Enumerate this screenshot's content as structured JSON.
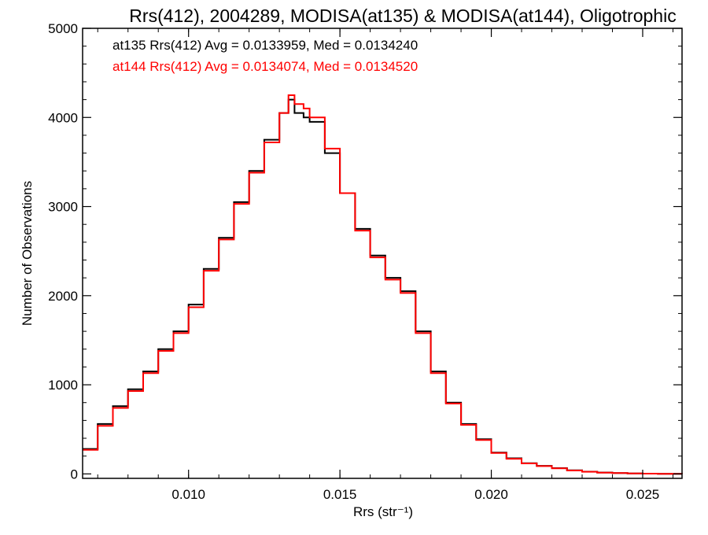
{
  "chart_data": {
    "type": "line",
    "title": "Rrs(412), 2004289, MODISA(at135) & MODISA(at144), Oligotrophic",
    "xlabel": "Rrs (str⁻¹)",
    "ylabel": "Number of Observations",
    "xlim": [
      0.0065,
      0.0263
    ],
    "ylim": [
      -50,
      5000
    ],
    "x_ticks": [
      0.01,
      0.015,
      0.02,
      0.025
    ],
    "x_tick_labels": [
      "0.010",
      "0.015",
      "0.020",
      "0.025"
    ],
    "y_ticks": [
      0,
      1000,
      2000,
      3000,
      4000,
      5000
    ],
    "y_tick_labels": [
      "0",
      "1000",
      "2000",
      "3000",
      "4000",
      "5000"
    ],
    "grid": false,
    "legend_placement": "top-left",
    "annotations": [
      {
        "text": "at135 Rrs(412) Avg = 0.0133959, Med = 0.0134240",
        "color": "#000000"
      },
      {
        "text": "at144 Rrs(412) Avg = 0.0134074, Med = 0.0134520",
        "color": "#ff0000"
      }
    ],
    "series": [
      {
        "color": "#000000",
        "step": true,
        "x": [
          0.0065,
          0.007,
          0.0075,
          0.008,
          0.0085,
          0.009,
          0.0095,
          0.01,
          0.0105,
          0.011,
          0.0115,
          0.012,
          0.0125,
          0.013,
          0.0133,
          0.0135,
          0.0138,
          0.014,
          0.0145,
          0.015,
          0.0155,
          0.016,
          0.0165,
          0.017,
          0.0175,
          0.018,
          0.0185,
          0.019,
          0.0195,
          0.02,
          0.0205,
          0.021,
          0.0215,
          0.022,
          0.0225,
          0.023,
          0.0235,
          0.024,
          0.0245,
          0.025,
          0.0255,
          0.0263
        ],
        "y": [
          280,
          560,
          760,
          950,
          1150,
          1400,
          1600,
          1900,
          2300,
          2650,
          3050,
          3400,
          3750,
          4050,
          4200,
          4050,
          4000,
          3950,
          3600,
          3150,
          2750,
          2450,
          2200,
          2050,
          1600,
          1150,
          800,
          560,
          390,
          240,
          175,
          120,
          90,
          65,
          40,
          25,
          15,
          10,
          5,
          3,
          1,
          0
        ]
      },
      {
        "color": "#ff0000",
        "step": true,
        "x": [
          0.0065,
          0.007,
          0.0075,
          0.008,
          0.0085,
          0.009,
          0.0095,
          0.01,
          0.0105,
          0.011,
          0.0115,
          0.012,
          0.0125,
          0.013,
          0.0133,
          0.0135,
          0.0138,
          0.014,
          0.0145,
          0.015,
          0.0155,
          0.016,
          0.0165,
          0.017,
          0.0175,
          0.018,
          0.0185,
          0.019,
          0.0195,
          0.02,
          0.0205,
          0.021,
          0.0215,
          0.022,
          0.0225,
          0.023,
          0.0235,
          0.024,
          0.0245,
          0.025,
          0.0255,
          0.0263
        ],
        "y": [
          270,
          540,
          740,
          930,
          1130,
          1380,
          1580,
          1870,
          2280,
          2630,
          3030,
          3380,
          3720,
          4050,
          4250,
          4150,
          4100,
          4000,
          3650,
          3150,
          2730,
          2430,
          2180,
          2030,
          1580,
          1130,
          790,
          550,
          380,
          235,
          170,
          118,
          88,
          62,
          38,
          24,
          14,
          9,
          5,
          3,
          1,
          0
        ]
      }
    ]
  }
}
